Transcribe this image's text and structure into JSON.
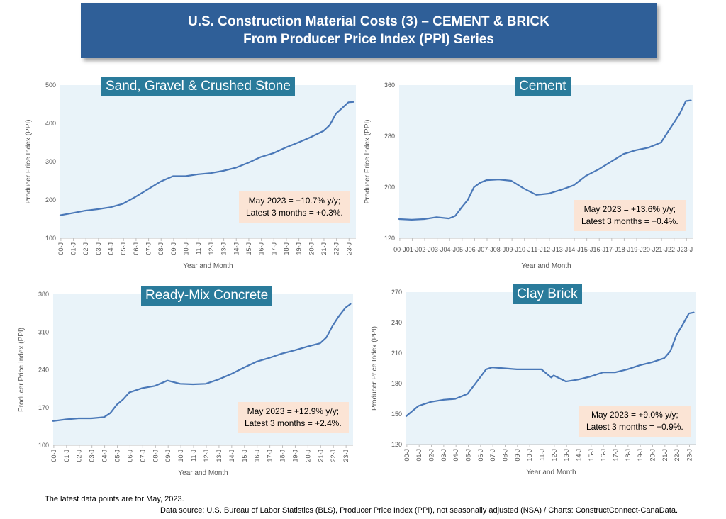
{
  "header": {
    "title_line1": "U.S. Construction Material Costs (3) – CEMENT & BRICK",
    "title_line2": "From Producer Price Index (PPI) Series"
  },
  "footer": {
    "latest_note": "The latest data points are for May, 2023.",
    "source": "Data source: U.S. Bureau of Labor Statistics (BLS), Producer Price Index (PPI), not seasonally adjusted (NSA) / Charts: ConstructConnect-CanaData."
  },
  "colors": {
    "line": "#4a78b8",
    "plot_bg": "#e9f3f9",
    "banner": "#2f5f98",
    "title_box": "#2a7b9b",
    "note_box": "#fbe4d5"
  },
  "chart_data": [
    {
      "type": "line",
      "title": "Sand, Gravel & Crushed Stone",
      "ylabel": "Producer Price Index (PPI)",
      "xlabel": "Year and Month",
      "ylim": [
        100,
        500
      ],
      "yticks": [
        100,
        200,
        300,
        400,
        500
      ],
      "xticks": [
        "00-J",
        "01-J",
        "02-J",
        "03-J",
        "04-J",
        "05-J",
        "06-J",
        "07-J",
        "08-J",
        "09-J",
        "10-J",
        "11-J",
        "12-J",
        "13-J",
        "14-J",
        "15-J",
        "16-J",
        "17-J",
        "18-J",
        "19-J",
        "20-J",
        "21-J",
        "22-J",
        "23-J"
      ],
      "tick_rotate": true,
      "note_line1": "May 2023 = +10.7% y/y;",
      "note_line2": "Latest 3 months = +0.3%.",
      "x": [
        2000,
        2001,
        2002,
        2003,
        2004,
        2005,
        2006,
        2007,
        2008,
        2009,
        2010,
        2011,
        2012,
        2013,
        2014,
        2015,
        2016,
        2017,
        2018,
        2019,
        2020,
        2021,
        2021.5,
        2022,
        2022.5,
        2023,
        2023.4
      ],
      "values": [
        160,
        166,
        172,
        176,
        181,
        190,
        208,
        228,
        248,
        262,
        262,
        267,
        270,
        276,
        284,
        297,
        312,
        322,
        337,
        350,
        364,
        380,
        395,
        425,
        440,
        455,
        456
      ]
    },
    {
      "type": "line",
      "title": "Cement",
      "ylabel": "Producer Price Index (PPI)",
      "xlabel": "Year and Month",
      "ylim": [
        120,
        360
      ],
      "yticks": [
        120,
        200,
        280,
        360
      ],
      "xticks": [
        "00-J",
        "01-J",
        "02-J",
        "03-J",
        "04-J",
        "05-J",
        "06-J",
        "07-J",
        "08-J",
        "09-J",
        "10-J",
        "11-J",
        "12-J",
        "13-J",
        "14-J",
        "15-J",
        "16-J",
        "17-J",
        "18-J",
        "19-J",
        "20-J",
        "21-J",
        "22-J",
        "23-J"
      ],
      "tick_rotate": false,
      "note_line1": "May 2023 = +13.6% y/y;",
      "note_line2": "Latest 3 months = +0.4%.",
      "x": [
        2000,
        2001,
        2002,
        2003,
        2004,
        2004.5,
        2005,
        2005.5,
        2006,
        2006.5,
        2007,
        2008,
        2009,
        2010,
        2011,
        2012,
        2013,
        2014,
        2015,
        2016,
        2017,
        2018,
        2019,
        2020,
        2021,
        2021.5,
        2022,
        2022.5,
        2023,
        2023.4
      ],
      "values": [
        150,
        149,
        150,
        153,
        151,
        155,
        168,
        180,
        200,
        207,
        211,
        212,
        210,
        198,
        188,
        190,
        196,
        203,
        218,
        228,
        240,
        252,
        258,
        262,
        270,
        285,
        300,
        315,
        335,
        336
      ]
    },
    {
      "type": "line",
      "title": "Ready-Mix Concrete",
      "ylabel": "Producer Price Index (PPI)",
      "xlabel": "Year and Month",
      "ylim": [
        100,
        380
      ],
      "yticks": [
        100,
        170,
        240,
        310,
        380
      ],
      "xticks": [
        "00-J",
        "01-J",
        "02-J",
        "03-J",
        "04-J",
        "05-J",
        "06-J",
        "07-J",
        "08-J",
        "09-J",
        "10-J",
        "11-J",
        "12-J",
        "13-J",
        "14-J",
        "15-J",
        "16-J",
        "17-J",
        "18-J",
        "19-J",
        "20-J",
        "21-J",
        "22-J",
        "23-J"
      ],
      "tick_rotate": true,
      "note_line1": "May 2023 = +12.9% y/y;",
      "note_line2": "Latest 3 months = +2.4%.",
      "x": [
        2000,
        2001,
        2002,
        2003,
        2004,
        2004.5,
        2005,
        2005.5,
        2006,
        2007,
        2008,
        2009,
        2010,
        2011,
        2012,
        2013,
        2014,
        2015,
        2016,
        2017,
        2018,
        2019,
        2020,
        2021,
        2021.5,
        2022,
        2022.5,
        2023,
        2023.4
      ],
      "values": [
        145,
        148,
        150,
        150,
        152,
        160,
        175,
        185,
        198,
        206,
        210,
        220,
        214,
        213,
        214,
        222,
        232,
        244,
        255,
        262,
        270,
        276,
        283,
        289,
        300,
        322,
        340,
        355,
        362
      ]
    },
    {
      "type": "line",
      "title": "Clay Brick",
      "ylabel": "Producer Price Index (PPI)",
      "xlabel": "Year and Month",
      "ylim": [
        120,
        270
      ],
      "yticks": [
        120,
        150,
        180,
        210,
        240,
        270
      ],
      "xticks": [
        "00-J",
        "01-J",
        "02-J",
        "03-J",
        "04-J",
        "05-J",
        "06-J",
        "07-J",
        "08-J",
        "09-J",
        "10-J",
        "11-J",
        "12-J",
        "13-J",
        "14-J",
        "15-J",
        "16-J",
        "17-J",
        "18-J",
        "19-J",
        "20-J",
        "21-J",
        "22-J",
        "23-J"
      ],
      "tick_rotate": true,
      "note_line1": "May 2023 = +9.0% y/y;",
      "note_line2": "Latest 3 months = +0.9%.",
      "x": [
        2000,
        2001,
        2002,
        2003,
        2004,
        2005,
        2005.5,
        2006,
        2006.5,
        2007,
        2008,
        2009,
        2010,
        2011,
        2011.8,
        2012,
        2013,
        2014,
        2015,
        2016,
        2017,
        2018,
        2019,
        2020,
        2021,
        2021.5,
        2022,
        2022.5,
        2023,
        2023.4
      ],
      "values": [
        148,
        158,
        162,
        164,
        165,
        170,
        178,
        186,
        194,
        196,
        195,
        194,
        194,
        194,
        186,
        188,
        182,
        184,
        187,
        191,
        191,
        194,
        198,
        201,
        205,
        212,
        228,
        238,
        249,
        250
      ]
    }
  ]
}
